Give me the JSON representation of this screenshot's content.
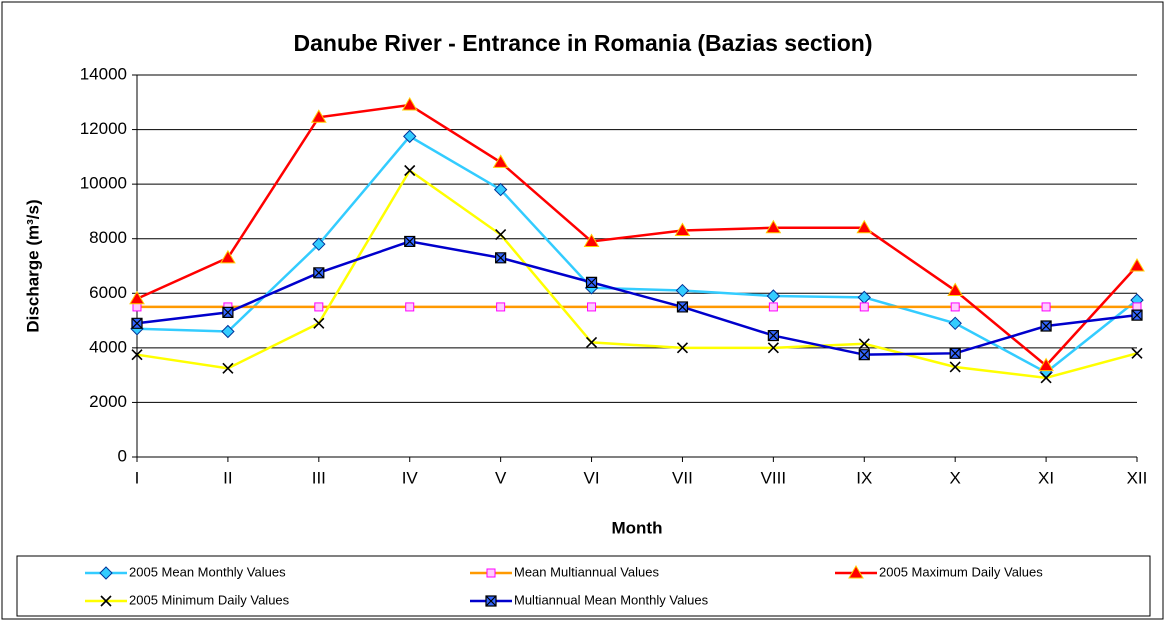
{
  "chart_data": {
    "type": "line",
    "title": "Danube River - Entrance in Romania (Bazias section)",
    "x_label": "Month",
    "y_label": "Discharge (m³/s)",
    "categories": [
      "I",
      "II",
      "III",
      "IV",
      "V",
      "VI",
      "VII",
      "VIII",
      "IX",
      "X",
      "XI",
      "XII"
    ],
    "series": [
      {
        "name": "2005 Mean Monthly Values",
        "color": "#33ccff",
        "marker": "diamond",
        "marker_color": "#33ccff",
        "values": [
          4700,
          4600,
          7800,
          11750,
          9800,
          6200,
          6100,
          5900,
          5850,
          4900,
          3100,
          5750
        ]
      },
      {
        "name": "Mean Multiannual Values",
        "color": "#ff9900",
        "marker": "square",
        "marker_color": "#ffccff",
        "values": [
          5500,
          5500,
          5500,
          5500,
          5500,
          5500,
          5500,
          5500,
          5500,
          5500,
          5500,
          5500
        ]
      },
      {
        "name": "2005 Maximum Daily Values",
        "color": "#ff0000",
        "marker": "triangle",
        "marker_color": "#ff0000",
        "values": [
          5800,
          7300,
          12450,
          12900,
          10800,
          7900,
          8300,
          8400,
          8400,
          6100,
          3350,
          7000
        ]
      },
      {
        "name": "2005 Minimum Daily Values",
        "color": "#ffff00",
        "marker": "x",
        "marker_color": "#000000",
        "values": [
          3750,
          3250,
          4900,
          10500,
          8150,
          4200,
          4000,
          4000,
          4150,
          3300,
          2900,
          3800
        ]
      },
      {
        "name": "Multiannual Mean Monthly Values",
        "color": "#0000cc",
        "marker": "xsquare",
        "marker_color": "#3366ff",
        "values": [
          4900,
          5300,
          6750,
          7900,
          7300,
          6400,
          5500,
          4450,
          3750,
          3800,
          4800,
          5200
        ]
      }
    ],
    "ylim": [
      0,
      14000
    ],
    "yticks": [
      0,
      2000,
      4000,
      6000,
      8000,
      10000,
      12000,
      14000
    ],
    "grid": true,
    "legend": "bottom"
  }
}
